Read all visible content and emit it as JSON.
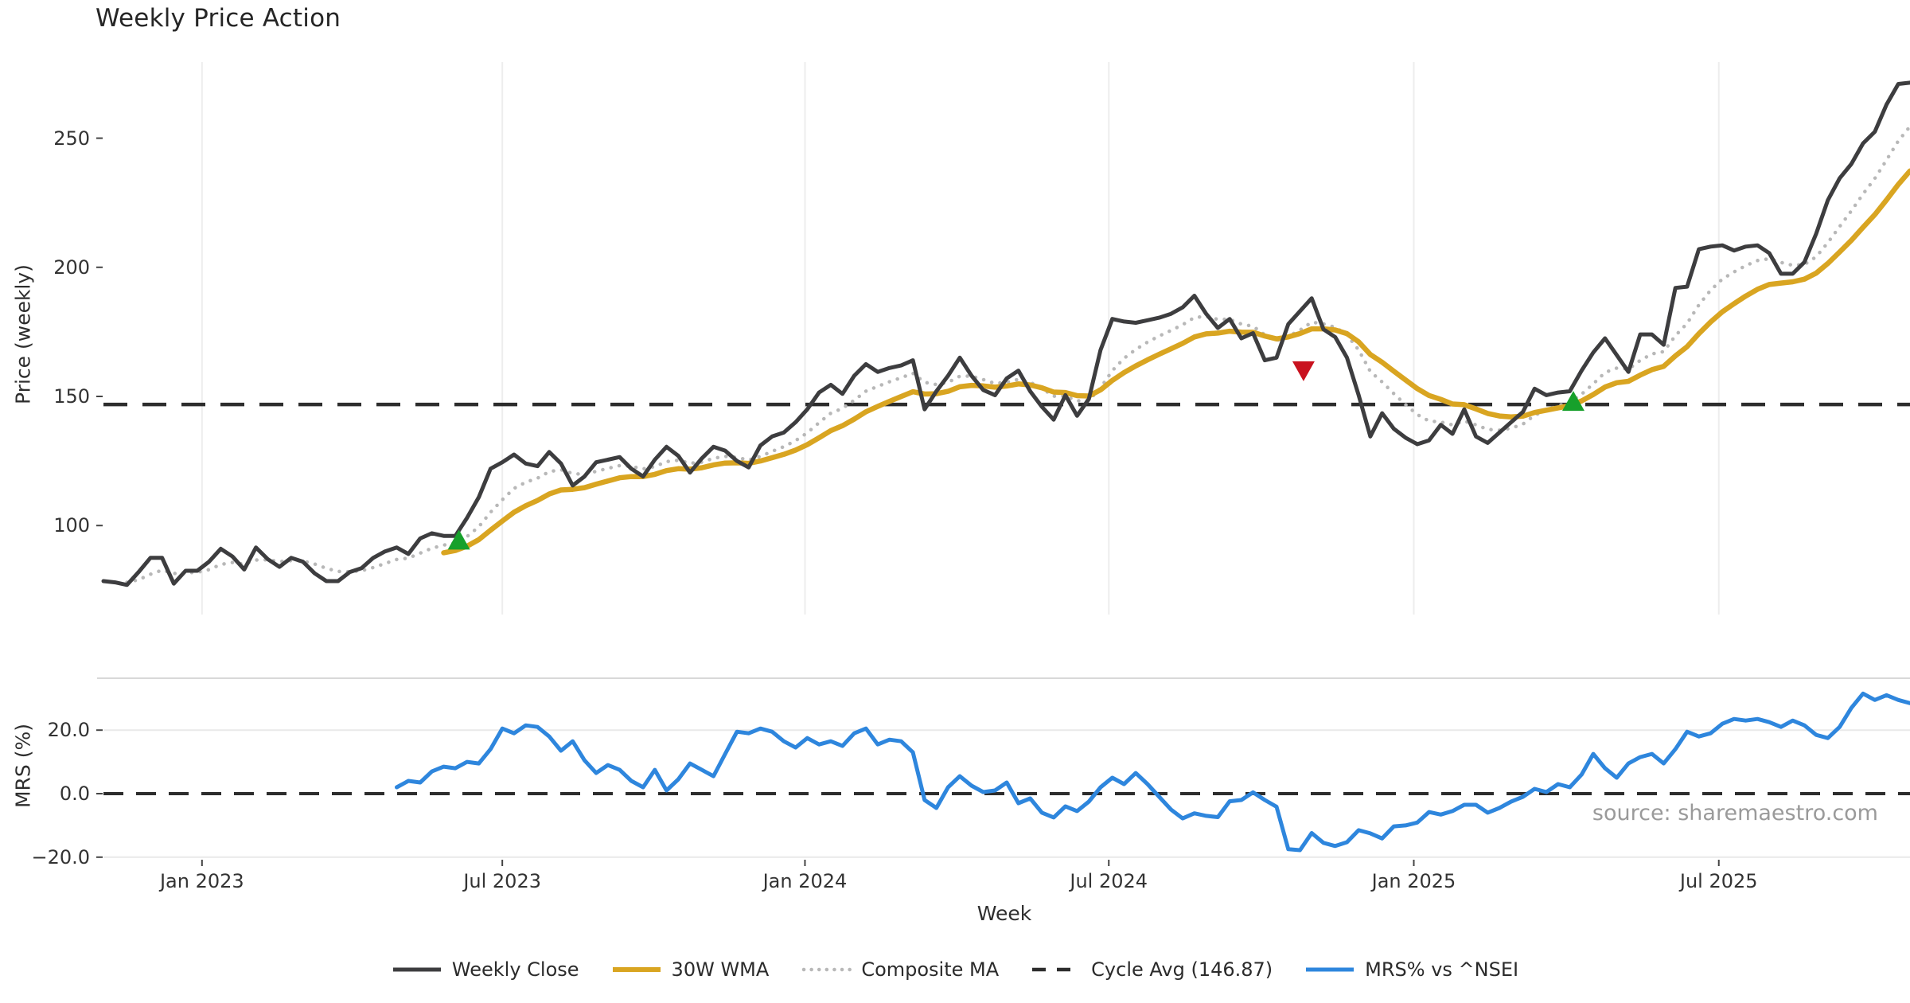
{
  "title": "Weekly Price Action",
  "source_note": "source: sharemaestro.com",
  "axes": {
    "price_axis_label": "Price (weekly)",
    "mrs_axis_label": "MRS (%)",
    "x_axis_label": "Week",
    "price_tick_labels": [
      "250",
      "200",
      "150",
      "100"
    ],
    "mrs_tick_labels": [
      "20.0",
      "0.0",
      "−20.0"
    ],
    "x_tick_labels": [
      "Jan 2023",
      "Jul 2023",
      "Jan 2024",
      "Jul 2024",
      "Jan 2025",
      "Jul 2025"
    ]
  },
  "legend": {
    "items": [
      {
        "label": "Weekly Close",
        "color": "#3d3d3f",
        "style": "solid"
      },
      {
        "label": "30W WMA",
        "color": "#d9a521",
        "style": "solid"
      },
      {
        "label": "Composite MA",
        "color": "#b8b8b8",
        "style": "dotted"
      },
      {
        "label": "Cycle Avg (146.87)",
        "color": "#2d2d2d",
        "style": "dashed"
      },
      {
        "label": "MRS% vs ^NSEI",
        "color": "#2e86dd",
        "style": "solid"
      }
    ]
  },
  "chart_data": {
    "type": "line",
    "title": "Weekly Price Action",
    "xlabel": "Week",
    "x_tick_labels": [
      "Jan 2023",
      "Jul 2023",
      "Jan 2024",
      "Jul 2024",
      "Jan 2025",
      "Jul 2025"
    ],
    "x_tick_weeks": [
      8.4,
      34.0,
      59.8,
      85.7,
      111.7,
      137.7
    ],
    "n_weeks": 155,
    "panels": [
      {
        "name": "price",
        "ylabel": "Price (weekly)",
        "ytick_values": [
          250,
          200,
          150,
          100
        ],
        "ylim": [
          66,
          279
        ],
        "cycle_avg": 146.87,
        "series": [
          {
            "name": "Weekly Close",
            "color": "#3d3d3f",
            "style": "solid",
            "start_week": 0,
            "values": [
              78.5,
              78,
              77,
              82,
              87.5,
              87.5,
              77.5,
              82.5,
              82.5,
              86,
              91,
              88,
              83,
              91.5,
              87,
              84,
              87.5,
              86,
              81.5,
              78.5,
              78.5,
              82,
              83.5,
              87.5,
              90,
              91.5,
              89,
              95,
              97,
              96,
              96,
              103,
              111,
              122,
              124.5,
              127.5,
              124,
              123,
              128.5,
              124,
              115.5,
              119,
              124.5,
              125.5,
              126.5,
              122,
              119,
              125.5,
              130.5,
              127,
              120.5,
              126,
              130.5,
              129,
              125,
              122.5,
              131,
              134.5,
              136,
              140,
              145,
              151.5,
              154.5,
              151,
              158,
              162.5,
              159.5,
              161,
              162,
              164,
              145,
              152,
              158,
              165,
              158,
              152.5,
              150.5,
              157,
              160,
              152,
              146,
              141,
              150.5,
              142.5,
              149,
              168,
              180,
              179,
              178.5,
              179.5,
              180.5,
              182,
              184.5,
              189,
              182,
              176.5,
              180,
              172.5,
              174.5,
              164,
              165,
              178,
              183,
              188,
              176,
              173,
              165,
              150.5,
              134.5,
              143.5,
              137.5,
              134,
              131.5,
              133,
              139,
              135.5,
              145,
              134.5,
              132,
              136,
              140,
              144,
              153,
              150.5,
              151.5,
              152,
              160,
              167,
              172.5,
              166,
              159.5,
              174,
              174,
              170,
              192,
              192.5,
              207,
              208,
              208.5,
              206.5,
              208,
              208.5,
              205.5,
              197.5,
              197.5,
              202,
              213,
              226,
              234.5,
              240,
              248,
              252.5,
              263,
              271,
              271.5
            ]
          },
          {
            "name": "30W WMA",
            "color": "#d9a521",
            "style": "solid",
            "derived_from": "Weekly Close",
            "method": "ema",
            "span": 14,
            "start_week": 29
          },
          {
            "name": "Composite MA",
            "color": "#b8b8b8",
            "style": "dotted",
            "derived_from": "Weekly Close",
            "method": "ema",
            "span": 7,
            "start_week": 2
          },
          {
            "name": "Cycle Avg",
            "color": "#2d2d2d",
            "style": "dashed",
            "constant": 146.87
          }
        ],
        "markers": {
          "buy": [
            {
              "week": 30.3,
              "price": 93.8
            },
            {
              "week": 125.3,
              "price": 147.5
            }
          ],
          "sell": [
            {
              "week": 102.3,
              "price": 160.5
            }
          ],
          "buy_color": "#17a02b",
          "sell_color": "#c9121f"
        }
      },
      {
        "name": "mrs",
        "ylabel": "MRS (%)",
        "ytick_values": [
          20,
          0,
          -20
        ],
        "ylim": [
          -21,
          36
        ],
        "zero_line": 0,
        "series": [
          {
            "name": "MRS% vs ^NSEI",
            "color": "#2e86dd",
            "style": "solid",
            "start_week": 25,
            "values": [
              2,
              4,
              3.5,
              7,
              8.5,
              8,
              10,
              9.5,
              14,
              20.5,
              19,
              21.5,
              21,
              18,
              13.5,
              16.5,
              10.5,
              6.5,
              9,
              7.5,
              4,
              2,
              7.5,
              1,
              4.5,
              9.5,
              7.5,
              5.5,
              12.5,
              19.5,
              19,
              20.5,
              19.5,
              16.5,
              14.5,
              17.5,
              15.5,
              16.5,
              15,
              19,
              20.5,
              15.5,
              17,
              16.5,
              13,
              -2,
              -4.5,
              2,
              5.5,
              2.5,
              0.5,
              1,
              3.5,
              -3,
              -1.5,
              -6,
              -7.5,
              -4,
              -5.5,
              -2.5,
              2,
              5,
              3,
              6.5,
              3,
              -1,
              -5,
              -7.8,
              -6.2,
              -7,
              -7.4,
              -2.4,
              -2,
              0.4,
              -2,
              -4.1,
              -17.5,
              -17.8,
              -12.4,
              -15.5,
              -16.5,
              -15.3,
              -11.5,
              -12.5,
              -14.1,
              -10.3,
              -10,
              -9.1,
              -5.8,
              -6.6,
              -5.5,
              -3.5,
              -3.5,
              -6,
              -4.5,
              -2.5,
              -1,
              1.5,
              0.5,
              3,
              2,
              6,
              12.5,
              8,
              5,
              9.5,
              11.5,
              12.5,
              9.5,
              14,
              19.5,
              18,
              19,
              22,
              23.5,
              23,
              23.5,
              22.5,
              21,
              23,
              21.5,
              18.5,
              17.5,
              21,
              27,
              31.5,
              29.5,
              31,
              29.5,
              28.5
            ]
          }
        ]
      }
    ]
  }
}
